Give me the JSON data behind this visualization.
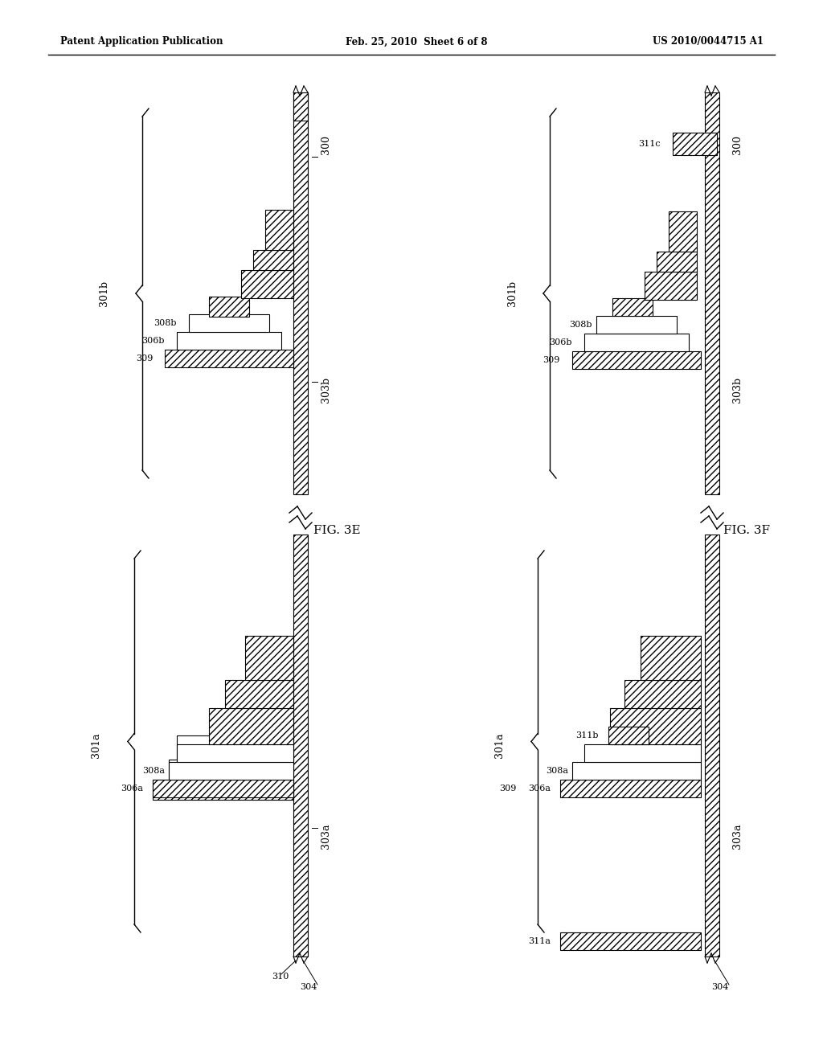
{
  "bg_color": "#ffffff",
  "text_color": "#000000",
  "header_left": "Patent Application Publication",
  "header_center": "Feb. 25, 2010  Sheet 6 of 8",
  "header_right": "US 2010/0044715 A1",
  "fig3e_label": "FIG. 3E",
  "fig3f_label": "FIG. 3F",
  "labels": {
    "300": "300",
    "301a": "301a",
    "301b": "301b",
    "303a": "303a",
    "303b": "303b",
    "304": "304",
    "306a": "306a",
    "306b": "306b",
    "308a": "308a",
    "308b": "308b",
    "309": "309",
    "310": "310",
    "311a": "311a",
    "311b": "311b",
    "311c": "311c"
  },
  "hatch_pattern": "////",
  "line_color": "#000000",
  "hatch_color": "#000000"
}
